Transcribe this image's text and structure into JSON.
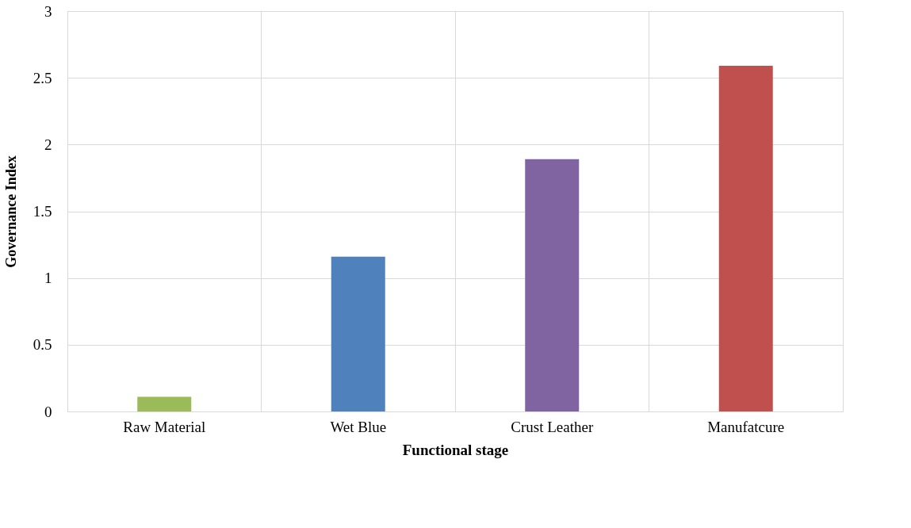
{
  "chart_data": {
    "type": "bar",
    "categories": [
      "Raw Material",
      "Wet Blue",
      "Crust Leather",
      "Manufatcure"
    ],
    "values": [
      0.11,
      1.16,
      1.89,
      2.59
    ],
    "colors": [
      "#9bbb59",
      "#4f81bd",
      "#8064a2",
      "#c0504d"
    ],
    "xlabel": "Functional stage",
    "ylabel": "Governance Index",
    "ylim": [
      0,
      3
    ],
    "yticks": [
      0,
      0.5,
      1,
      1.5,
      2,
      2.5,
      3
    ],
    "grid": true
  }
}
